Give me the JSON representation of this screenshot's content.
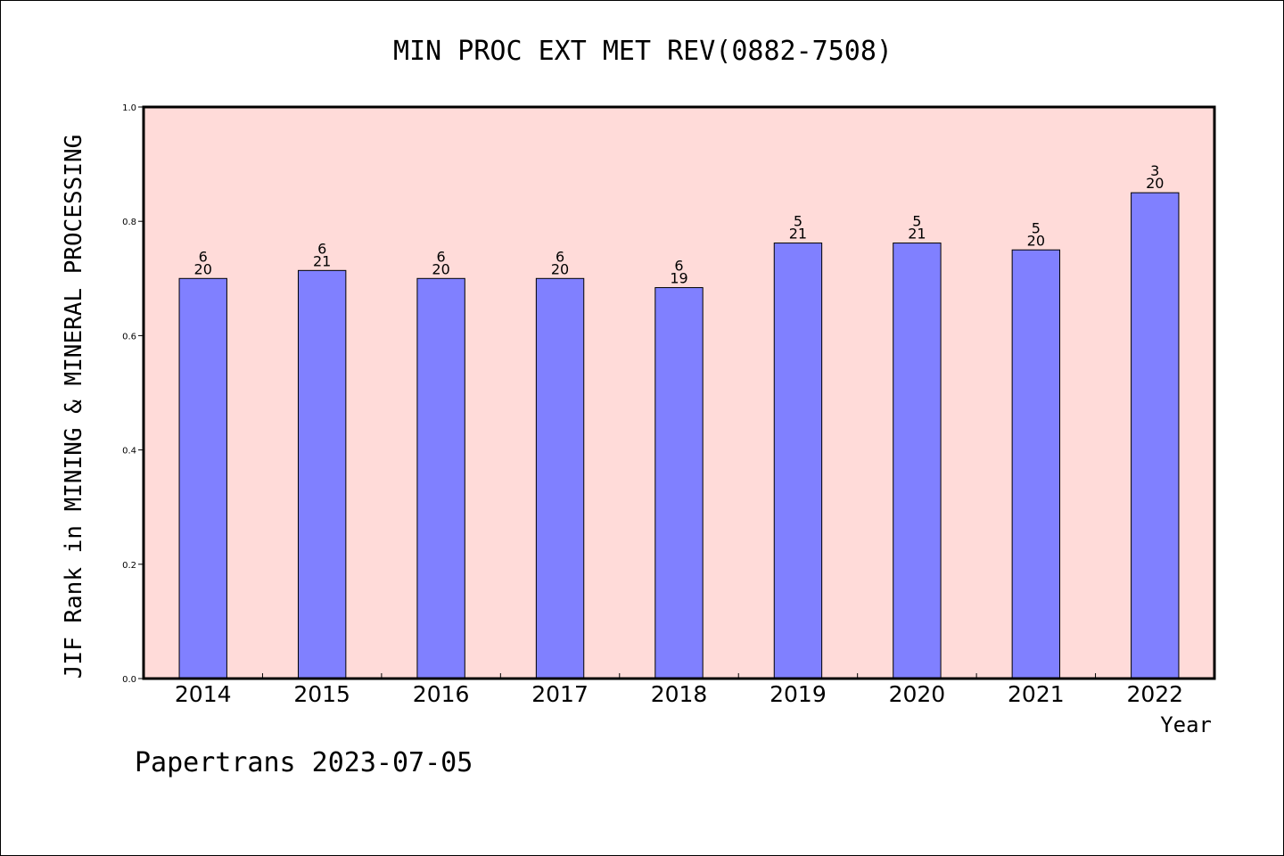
{
  "chart_data": {
    "type": "bar",
    "title": "MIN PROC EXT MET REV(0882-7508)",
    "xlabel": "Year",
    "ylabel": "JIF Rank in MINING & MINERAL PROCESSING",
    "categories": [
      "2014",
      "2015",
      "2016",
      "2017",
      "2018",
      "2019",
      "2020",
      "2021",
      "2022"
    ],
    "values": [
      0.7,
      0.714,
      0.7,
      0.7,
      0.684,
      0.762,
      0.762,
      0.75,
      0.85
    ],
    "ranks": [
      "6",
      "6",
      "6",
      "6",
      "6",
      "5",
      "5",
      "5",
      "3"
    ],
    "totals": [
      "20",
      "21",
      "20",
      "20",
      "19",
      "21",
      "21",
      "20",
      "20"
    ],
    "ylim": [
      0,
      1.0
    ],
    "yticks": [
      "0.0",
      "0.2",
      "0.4",
      "0.6",
      "0.8",
      "1.0"
    ],
    "grid": false,
    "colors": {
      "plot_background": "#ffdbd9",
      "bar_fill": "#8080ff",
      "bar_stroke": "#000000"
    }
  },
  "footer": "Papertrans 2023-07-05"
}
